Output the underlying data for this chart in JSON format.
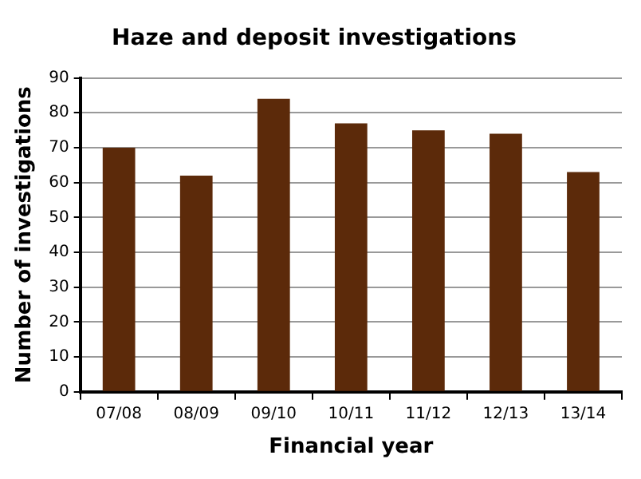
{
  "chart_data": {
    "type": "bar",
    "title": "Haze and deposit investigations",
    "xlabel": "Financial year",
    "ylabel": "Number of investigations",
    "categories": [
      "07/08",
      "08/09",
      "09/10",
      "10/11",
      "11/12",
      "12/13",
      "13/14"
    ],
    "values": [
      70,
      62,
      84,
      77,
      75,
      74,
      63
    ],
    "color": "#5c2a0a",
    "ylim": [
      0,
      90
    ],
    "yticks": [
      0,
      10,
      20,
      30,
      40,
      50,
      60,
      70,
      80,
      90
    ],
    "grid": "y",
    "legend": false
  }
}
